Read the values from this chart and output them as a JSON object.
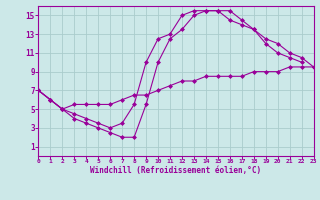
{
  "line1_x": [
    0,
    1,
    2,
    3,
    4,
    5,
    6,
    7,
    8,
    9,
    10,
    11,
    12,
    13,
    14,
    15,
    16,
    17,
    18,
    19,
    20,
    21,
    22,
    23
  ],
  "line1_y": [
    7,
    6,
    5,
    5.5,
    5.5,
    5.5,
    5.5,
    6,
    6.5,
    6.5,
    7,
    7.5,
    8,
    8,
    8.5,
    8.5,
    8.5,
    8.5,
    9,
    9,
    9,
    9.5,
    9.5,
    9.5
  ],
  "line2_x": [
    0,
    1,
    2,
    3,
    4,
    5,
    6,
    7,
    8,
    9,
    10,
    11,
    12,
    13,
    14,
    15,
    16,
    17,
    18,
    19,
    20,
    21,
    22,
    23
  ],
  "line2_y": [
    7,
    6,
    5,
    4.5,
    4,
    3.5,
    3,
    3.5,
    5.5,
    10,
    12.5,
    13,
    15,
    15.5,
    15.5,
    15.5,
    14.5,
    14,
    13.5,
    12,
    11,
    10.5,
    10,
    null
  ],
  "line3_x": [
    0,
    1,
    2,
    3,
    4,
    5,
    6,
    7,
    8,
    9,
    10,
    11,
    12,
    13,
    14,
    15,
    16,
    17,
    18,
    19,
    20,
    21,
    22,
    23
  ],
  "line3_y": [
    7,
    6,
    5,
    4,
    3.5,
    3,
    2.5,
    2,
    2,
    5.5,
    10,
    12.5,
    13.5,
    15,
    15.5,
    15.5,
    15.5,
    14.5,
    13.5,
    12.5,
    12,
    11,
    10.5,
    9.5
  ],
  "color": "#990099",
  "bg_color": "#cce8e8",
  "grid_color": "#aacccc",
  "xlabel": "Windchill (Refroidissement éolien,°C)",
  "xlim_min": 0,
  "xlim_max": 23,
  "ylim_min": 0,
  "ylim_max": 16,
  "xticks": [
    0,
    1,
    2,
    3,
    4,
    5,
    6,
    7,
    8,
    9,
    10,
    11,
    12,
    13,
    14,
    15,
    16,
    17,
    18,
    19,
    20,
    21,
    22,
    23
  ],
  "yticks": [
    1,
    3,
    5,
    7,
    9,
    11,
    13,
    15
  ]
}
